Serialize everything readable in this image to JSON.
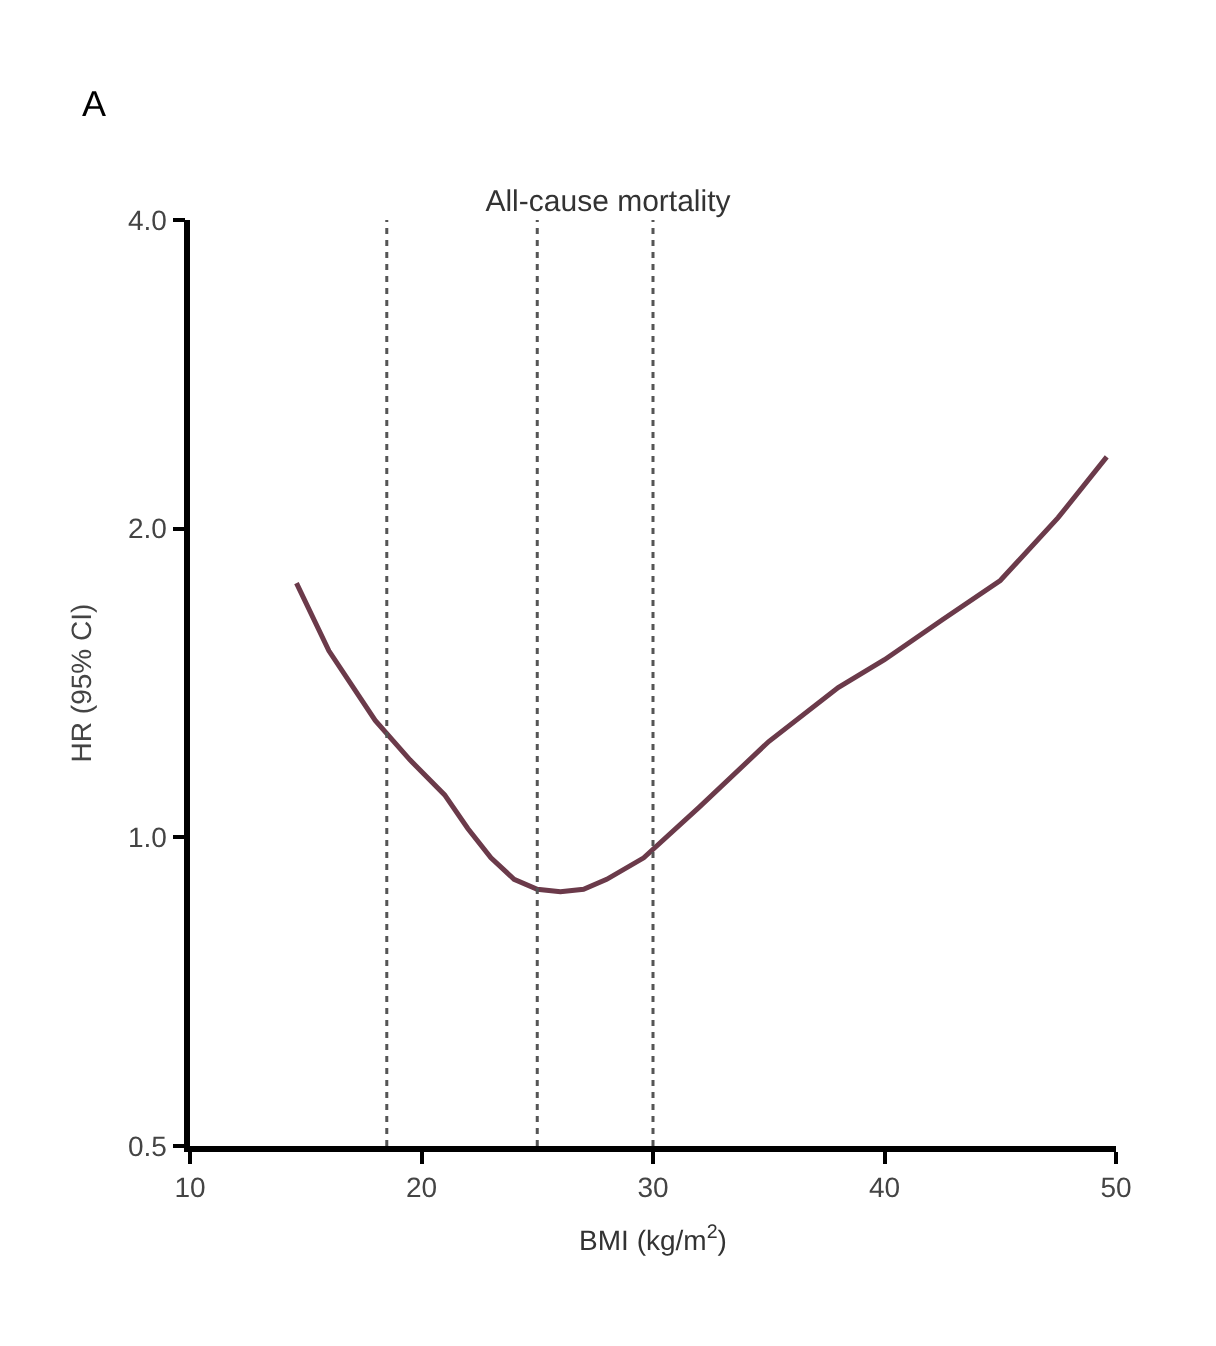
{
  "chart_data": {
    "type": "line",
    "title": "All-cause mortality",
    "xlabel": "BMI (kg/m$^{2}$)",
    "ylabel": "HR (95% CI)",
    "annotations": [
      "A"
    ],
    "x": [
      14.6,
      16,
      18,
      19.5,
      21,
      22,
      23,
      24,
      25,
      26,
      27,
      28,
      29.6,
      32,
      35,
      38,
      40,
      42.5,
      45,
      47.5,
      49.6
    ],
    "series": [
      {
        "color": "#6b3a4a",
        "values": [
          1.77,
          1.52,
          1.3,
          1.19,
          1.1,
          1.02,
          0.955,
          0.91,
          0.89,
          0.885,
          0.89,
          0.91,
          0.955,
          1.07,
          1.24,
          1.4,
          1.49,
          1.63,
          1.78,
          2.05,
          2.35
        ]
      }
    ],
    "log": true,
    "xlim": [
      10,
      50
    ],
    "xticks": [
      10,
      20,
      30,
      40,
      50
    ],
    "ylim": [
      0.5,
      4.0
    ],
    "yticks": [
      {
        "value": 0.5,
        "label": "0.5"
      },
      {
        "value": 1.0,
        "label": "1.0"
      },
      {
        "value": 2.0,
        "label": "2.0"
      },
      {
        "value": 4.0,
        "label": "4.0"
      }
    ],
    "ref_lines": [
      {
        "axis": "x",
        "value": 18.5,
        "line_style": "dotted",
        "color": "#555555"
      },
      {
        "axis": "x",
        "value": 25,
        "line_style": "dotted",
        "color": "#555555"
      },
      {
        "axis": "x",
        "value": 30,
        "line_style": "dotted",
        "color": "#555555"
      }
    ],
    "marker": "none",
    "line_style": "solid"
  }
}
